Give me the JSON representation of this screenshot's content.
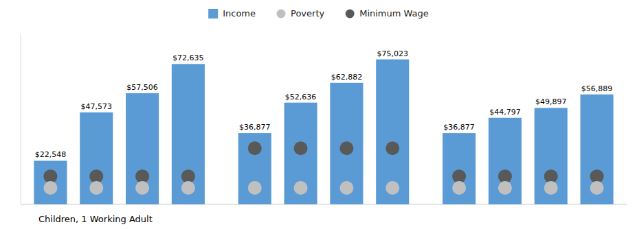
{
  "chart_data": {
    "type": "bar",
    "categories": [
      null,
      null,
      null,
      null,
      null,
      null,
      null,
      null,
      null,
      null,
      null,
      null
    ],
    "series": [
      {
        "name": "Income",
        "type": "bar",
        "color": "#5b9bd5",
        "values": [
          22548,
          47573,
          57506,
          72635,
          36877,
          52636,
          62882,
          75023,
          36877,
          44797,
          49897,
          56889
        ],
        "value_labels": [
          "$22,548",
          "$47,573",
          "$57,506",
          "$72,635",
          "$36,877",
          "$52,636",
          "$62,882",
          "$75,023",
          "$36,877",
          "$44,797",
          "$49,897",
          "$56,889"
        ]
      },
      {
        "name": "Poverty",
        "type": "scatter",
        "marker": "circle",
        "color": "#c0c0c0",
        "values": [
          8500,
          8500,
          8500,
          8500,
          8500,
          8500,
          8500,
          8500,
          8500,
          8500,
          8500,
          8500
        ]
      },
      {
        "name": "Minimum Wage",
        "type": "scatter",
        "marker": "circle",
        "color": "#595959",
        "values": [
          14500,
          14500,
          14500,
          14500,
          29000,
          29000,
          29000,
          29000,
          14500,
          14500,
          14500,
          14500
        ]
      }
    ],
    "ylim": [
      0,
      88000
    ],
    "tick_labels": false,
    "data_labels": true,
    "legend": "top",
    "annotations": [
      "Children, 1 Working Adult"
    ]
  }
}
